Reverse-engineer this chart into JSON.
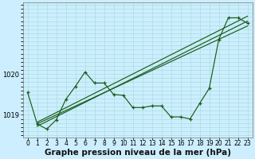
{
  "xlabel": "Graphe pression niveau de la mer (hPa)",
  "bg_color": "#cceeff",
  "line_color": "#1a5c1a",
  "grid_color": "#aadddd",
  "x_values": [
    0,
    1,
    2,
    3,
    4,
    5,
    6,
    7,
    8,
    9,
    10,
    11,
    12,
    13,
    14,
    15,
    16,
    17,
    18,
    19,
    20,
    21,
    22,
    23
  ],
  "y_main": [
    1019.55,
    1018.78,
    1018.65,
    1018.88,
    1019.38,
    1019.7,
    1020.05,
    1019.78,
    1019.78,
    1019.5,
    1019.48,
    1019.18,
    1019.18,
    1019.22,
    1019.22,
    1018.95,
    1018.95,
    1018.9,
    1019.28,
    1019.65,
    1020.85,
    1021.38,
    1021.38,
    1021.25
  ],
  "trend1": [
    1018.72,
    1021.3
  ],
  "trend2": [
    1018.78,
    1021.18
  ],
  "trend3": [
    1018.82,
    1021.42
  ],
  "ylim": [
    1018.45,
    1021.75
  ],
  "yticks": [
    1019.0,
    1020.0
  ],
  "xlim": [
    -0.5,
    23.5
  ],
  "label_fontsize": 7.5,
  "tick_fontsize": 5.5
}
